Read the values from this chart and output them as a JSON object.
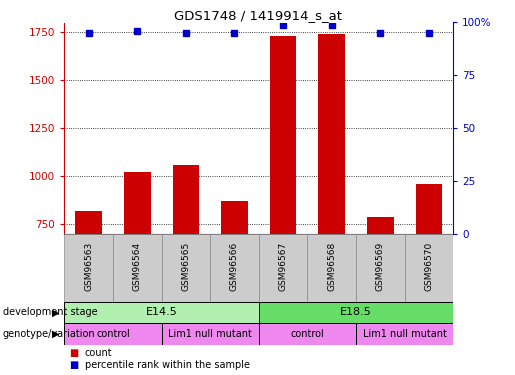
{
  "title": "GDS1748 / 1419914_s_at",
  "samples": [
    "GSM96563",
    "GSM96564",
    "GSM96565",
    "GSM96566",
    "GSM96567",
    "GSM96568",
    "GSM96569",
    "GSM96570"
  ],
  "counts": [
    820,
    1020,
    1060,
    870,
    1730,
    1740,
    790,
    960
  ],
  "percentile_ranks": [
    95,
    96,
    95,
    95,
    99,
    99,
    95,
    95
  ],
  "ylim_left": [
    700,
    1800
  ],
  "ylim_right": [
    0,
    100
  ],
  "yticks_left": [
    750,
    1000,
    1250,
    1500,
    1750
  ],
  "yticks_right": [
    0,
    25,
    50,
    75,
    100
  ],
  "bar_color": "#cc0000",
  "dot_color": "#0000cc",
  "bar_bottom": 700,
  "development_stage_labels": [
    "E14.5",
    "E18.5"
  ],
  "development_stage_ranges": [
    [
      0,
      4
    ],
    [
      4,
      8
    ]
  ],
  "development_stage_colors": [
    "#b2f0b2",
    "#66dd66"
  ],
  "genotype_labels": [
    "control",
    "Lim1 null mutant",
    "control",
    "Lim1 null mutant"
  ],
  "genotype_ranges": [
    [
      0,
      2
    ],
    [
      2,
      4
    ],
    [
      4,
      6
    ],
    [
      6,
      8
    ]
  ],
  "genotype_color": "#ee88ee",
  "tick_color_left": "#cc0000",
  "tick_color_right": "#0000cc",
  "legend_count_color": "#cc0000",
  "legend_pct_color": "#0000cc",
  "sample_box_color": "#cccccc",
  "right_axis_label": "100%"
}
